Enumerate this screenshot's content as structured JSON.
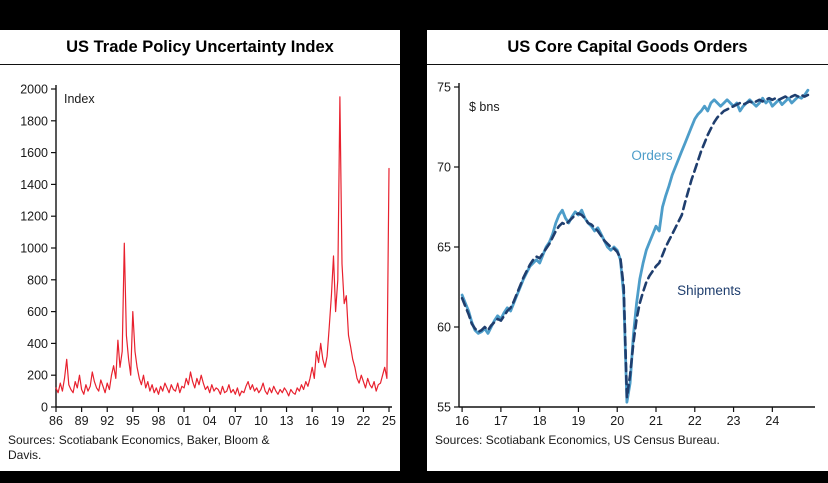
{
  "frame": {
    "bg": "#000000",
    "panel_bg": "#ffffff"
  },
  "colors": {
    "tpu_line": "#e8212e",
    "orders_line": "#4d9dc9",
    "shipments_line": "#1f3e6e"
  },
  "chart_data": [
    {
      "type": "line",
      "title": "US Trade Policy Uncertainty Index",
      "ylabel": "Index",
      "xlabel": "",
      "xlim": [
        1986,
        2025.35
      ],
      "ylim": [
        0,
        2000
      ],
      "yticks": [
        0,
        200,
        400,
        600,
        800,
        1000,
        1200,
        1400,
        1600,
        1800,
        2000
      ],
      "xticks": [
        1986,
        1989,
        1992,
        1995,
        1998,
        2001,
        2004,
        2007,
        2010,
        2013,
        2016,
        2019,
        2022,
        2025
      ],
      "xtick_labels": [
        "86",
        "89",
        "92",
        "95",
        "98",
        "01",
        "04",
        "07",
        "10",
        "13",
        "16",
        "19",
        "22",
        "25"
      ],
      "grid": false,
      "legend_position": "none",
      "x_start": 1986,
      "x_step": 0.25,
      "series": [
        {
          "name": "Uncertainty Index",
          "color": "#e8212e",
          "width": 1.2,
          "values": [
            120,
            90,
            150,
            100,
            180,
            300,
            140,
            110,
            90,
            160,
            120,
            200,
            110,
            80,
            140,
            100,
            130,
            220,
            160,
            120,
            100,
            170,
            130,
            90,
            150,
            110,
            200,
            260,
            180,
            420,
            250,
            350,
            1030,
            450,
            300,
            200,
            600,
            350,
            250,
            180,
            140,
            200,
            120,
            160,
            100,
            140,
            90,
            120,
            80,
            130,
            100,
            150,
            120,
            90,
            140,
            110,
            100,
            150,
            90,
            130,
            120,
            180,
            140,
            220,
            160,
            120,
            180,
            140,
            200,
            150,
            110,
            130,
            90,
            140,
            100,
            120,
            110,
            80,
            130,
            90,
            100,
            140,
            90,
            110,
            80,
            120,
            70,
            100,
            90,
            130,
            160,
            110,
            140,
            100,
            120,
            90,
            110,
            150,
            100,
            80,
            120,
            90,
            130,
            100,
            80,
            110,
            90,
            120,
            100,
            70,
            110,
            90,
            80,
            120,
            100,
            140,
            110,
            160,
            130,
            180,
            250,
            180,
            350,
            280,
            400,
            300,
            250,
            320,
            500,
            700,
            950,
            600,
            800,
            1950,
            900,
            650,
            700,
            450,
            380,
            300,
            250,
            180,
            150,
            200,
            160,
            120,
            180,
            140,
            120,
            160,
            100,
            140,
            150,
            200,
            250,
            180,
            1500
          ]
        }
      ],
      "sources_lines": [
        "Sources: Scotiabank Economics, Baker, Bloom &",
        "Davis."
      ]
    },
    {
      "type": "line",
      "title": "US Core Capital Goods Orders",
      "ylabel": "$ bns",
      "xlabel": "",
      "xlim": [
        2015.92,
        2025.1
      ],
      "ylim": [
        55,
        75
      ],
      "yticks": [
        55,
        60,
        65,
        70,
        75
      ],
      "xticks": [
        2016,
        2017,
        2018,
        2019,
        2020,
        2021,
        2022,
        2023,
        2024
      ],
      "xtick_labels": [
        "16",
        "17",
        "18",
        "19",
        "20",
        "21",
        "22",
        "23",
        "24"
      ],
      "grid": false,
      "legend_position": "inline-labels",
      "x_start": 2016,
      "x_step": 0.08333,
      "series": [
        {
          "name": "Orders",
          "color": "#4d9dc9",
          "width": 2.8,
          "values": [
            62.0,
            61.5,
            61.0,
            60.3,
            59.8,
            59.6,
            59.7,
            59.9,
            59.6,
            60.0,
            60.4,
            60.7,
            60.5,
            60.9,
            61.2,
            61.0,
            61.5,
            62.0,
            62.5,
            63.0,
            63.4,
            63.8,
            64.0,
            64.2,
            64.0,
            64.5,
            65.0,
            65.3,
            65.8,
            66.5,
            67.0,
            67.3,
            66.8,
            66.5,
            66.9,
            67.2,
            67.0,
            67.3,
            66.8,
            66.5,
            66.3,
            66.0,
            66.2,
            65.8,
            65.4,
            65.0,
            64.8,
            65.0,
            64.8,
            64.2,
            62.0,
            55.3,
            56.5,
            59.5,
            61.5,
            63.0,
            64.0,
            64.8,
            65.3,
            65.8,
            66.3,
            66.0,
            67.5,
            68.2,
            68.8,
            69.5,
            70.0,
            70.5,
            71.0,
            71.5,
            72.0,
            72.5,
            73.0,
            73.3,
            73.5,
            73.8,
            73.5,
            74.0,
            74.2,
            74.0,
            73.8,
            74.0,
            74.2,
            74.0,
            73.8,
            74.0,
            73.5,
            73.8,
            74.0,
            74.2,
            74.0,
            73.8,
            74.0,
            74.3,
            74.0,
            74.2,
            73.8,
            74.0,
            74.2,
            73.9,
            74.1,
            74.3,
            74.0,
            74.2,
            74.4,
            74.3,
            74.5,
            74.8
          ]
        },
        {
          "name": "Shipments",
          "color": "#1f3e6e",
          "width": 2.6,
          "dash": "8 5",
          "values": [
            61.8,
            61.3,
            60.8,
            60.2,
            59.9,
            59.7,
            59.8,
            60.0,
            59.8,
            60.1,
            60.3,
            60.5,
            60.4,
            60.7,
            61.0,
            61.2,
            61.6,
            62.1,
            62.6,
            63.1,
            63.5,
            63.9,
            64.2,
            64.4,
            64.3,
            64.6,
            64.9,
            65.2,
            65.6,
            66.0,
            66.3,
            66.5,
            66.4,
            66.6,
            66.8,
            67.0,
            67.1,
            67.0,
            66.8,
            66.5,
            66.4,
            66.2,
            66.0,
            65.7,
            65.4,
            65.2,
            65.0,
            64.9,
            64.7,
            64.3,
            62.5,
            55.6,
            57.0,
            59.0,
            60.5,
            61.5,
            62.2,
            62.8,
            63.2,
            63.5,
            63.8,
            64.0,
            64.5,
            65.0,
            65.4,
            65.8,
            66.2,
            66.6,
            67.0,
            67.8,
            68.5,
            69.2,
            69.8,
            70.4,
            71.0,
            71.5,
            72.0,
            72.4,
            72.8,
            73.1,
            73.3,
            73.5,
            73.6,
            73.7,
            73.8,
            73.9,
            74.0,
            73.9,
            74.0,
            74.1,
            74.0,
            74.1,
            74.2,
            74.1,
            74.2,
            74.3,
            74.2,
            74.3,
            74.2,
            74.3,
            74.4,
            74.3,
            74.4,
            74.5,
            74.4,
            74.5,
            74.4,
            74.5
          ]
        }
      ],
      "sources_lines": [
        "Sources: Scotiabank Economics, US Census Bureau."
      ]
    }
  ]
}
